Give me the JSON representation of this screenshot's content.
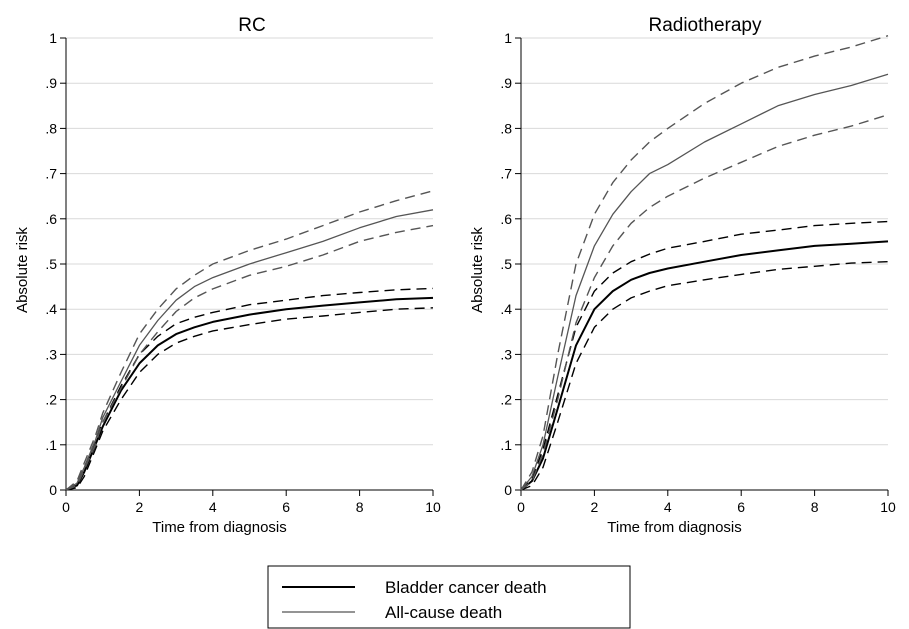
{
  "chart_data": [
    {
      "type": "line",
      "title": "RC",
      "xlabel": "Time from diagnosis",
      "ylabel": "Absolute risk",
      "xlim": [
        0,
        10
      ],
      "ylim": [
        0,
        1
      ],
      "xticks": [
        "0",
        "2",
        "4",
        "6",
        "8",
        "10"
      ],
      "yticks": [
        "0",
        ".1",
        ".2",
        ".3",
        ".4",
        ".5",
        ".6",
        ".7",
        ".8",
        ".9",
        "1"
      ],
      "grid": "horizontal",
      "series": [
        {
          "name": "Bladder cancer death",
          "color": "#000000",
          "style": "solid",
          "points": [
            [
              0,
              0
            ],
            [
              0.3,
              0.01
            ],
            [
              0.5,
              0.04
            ],
            [
              0.8,
              0.1
            ],
            [
              1,
              0.14
            ],
            [
              1.5,
              0.22
            ],
            [
              2,
              0.28
            ],
            [
              2.5,
              0.32
            ],
            [
              3,
              0.345
            ],
            [
              3.5,
              0.36
            ],
            [
              4,
              0.372
            ],
            [
              5,
              0.388
            ],
            [
              6,
              0.4
            ],
            [
              7,
              0.408
            ],
            [
              8,
              0.415
            ],
            [
              9,
              0.422
            ],
            [
              10,
              0.425
            ]
          ]
        },
        {
          "name": "",
          "color": "#000000",
          "style": "dashed",
          "points": [
            [
              0,
              0
            ],
            [
              0.3,
              0.015
            ],
            [
              0.5,
              0.05
            ],
            [
              0.8,
              0.11
            ],
            [
              1,
              0.15
            ],
            [
              1.5,
              0.23
            ],
            [
              2,
              0.3
            ],
            [
              2.5,
              0.34
            ],
            [
              3,
              0.368
            ],
            [
              3.5,
              0.382
            ],
            [
              4,
              0.393
            ],
            [
              5,
              0.41
            ],
            [
              6,
              0.42
            ],
            [
              7,
              0.43
            ],
            [
              8,
              0.437
            ],
            [
              9,
              0.443
            ],
            [
              10,
              0.446
            ]
          ]
        },
        {
          "name": "",
          "color": "#000000",
          "style": "dashed",
          "points": [
            [
              0,
              0
            ],
            [
              0.3,
              0.005
            ],
            [
              0.5,
              0.03
            ],
            [
              0.8,
              0.09
            ],
            [
              1,
              0.13
            ],
            [
              1.5,
              0.2
            ],
            [
              2,
              0.26
            ],
            [
              2.5,
              0.3
            ],
            [
              3,
              0.325
            ],
            [
              3.5,
              0.34
            ],
            [
              4,
              0.352
            ],
            [
              5,
              0.366
            ],
            [
              6,
              0.378
            ],
            [
              7,
              0.385
            ],
            [
              8,
              0.393
            ],
            [
              9,
              0.4
            ],
            [
              10,
              0.403
            ]
          ]
        },
        {
          "name": "All-cause death",
          "color": "#555555",
          "style": "solid",
          "points": [
            [
              0,
              0
            ],
            [
              0.3,
              0.015
            ],
            [
              0.5,
              0.05
            ],
            [
              0.8,
              0.11
            ],
            [
              1,
              0.16
            ],
            [
              1.5,
              0.24
            ],
            [
              2,
              0.32
            ],
            [
              2.5,
              0.375
            ],
            [
              3,
              0.42
            ],
            [
              3.5,
              0.45
            ],
            [
              4,
              0.47
            ],
            [
              5,
              0.5
            ],
            [
              6,
              0.525
            ],
            [
              7,
              0.55
            ],
            [
              8,
              0.58
            ],
            [
              9,
              0.605
            ],
            [
              10,
              0.62
            ]
          ]
        },
        {
          "name": "",
          "color": "#555555",
          "style": "dashed",
          "points": [
            [
              0,
              0
            ],
            [
              0.3,
              0.02
            ],
            [
              0.5,
              0.06
            ],
            [
              0.8,
              0.12
            ],
            [
              1,
              0.17
            ],
            [
              1.5,
              0.26
            ],
            [
              2,
              0.345
            ],
            [
              2.5,
              0.4
            ],
            [
              3,
              0.445
            ],
            [
              3.5,
              0.475
            ],
            [
              4,
              0.5
            ],
            [
              5,
              0.53
            ],
            [
              6,
              0.555
            ],
            [
              7,
              0.585
            ],
            [
              8,
              0.615
            ],
            [
              9,
              0.64
            ],
            [
              10,
              0.662
            ]
          ]
        },
        {
          "name": "",
          "color": "#555555",
          "style": "dashed",
          "points": [
            [
              0,
              0
            ],
            [
              0.3,
              0.01
            ],
            [
              0.5,
              0.045
            ],
            [
              0.8,
              0.1
            ],
            [
              1,
              0.15
            ],
            [
              1.5,
              0.225
            ],
            [
              2,
              0.3
            ],
            [
              2.5,
              0.35
            ],
            [
              3,
              0.395
            ],
            [
              3.5,
              0.425
            ],
            [
              4,
              0.445
            ],
            [
              5,
              0.475
            ],
            [
              6,
              0.495
            ],
            [
              7,
              0.52
            ],
            [
              8,
              0.55
            ],
            [
              9,
              0.57
            ],
            [
              10,
              0.585
            ]
          ]
        }
      ]
    },
    {
      "type": "line",
      "title": "Radiotherapy",
      "xlabel": "Time from diagnosis",
      "ylabel": "Absolute risk",
      "xlim": [
        0,
        10
      ],
      "ylim": [
        0,
        1
      ],
      "xticks": [
        "0",
        "2",
        "4",
        "6",
        "8",
        "10"
      ],
      "yticks": [
        "0",
        ".1",
        ".2",
        ".3",
        ".4",
        ".5",
        ".6",
        ".7",
        ".8",
        ".9",
        "1"
      ],
      "grid": "horizontal",
      "series": [
        {
          "name": "Bladder cancer death",
          "color": "#000000",
          "style": "solid",
          "points": [
            [
              0,
              0
            ],
            [
              0.3,
              0.02
            ],
            [
              0.6,
              0.07
            ],
            [
              1,
              0.18
            ],
            [
              1.5,
              0.32
            ],
            [
              2,
              0.4
            ],
            [
              2.5,
              0.44
            ],
            [
              3,
              0.465
            ],
            [
              3.5,
              0.48
            ],
            [
              4,
              0.49
            ],
            [
              5,
              0.505
            ],
            [
              6,
              0.52
            ],
            [
              7,
              0.53
            ],
            [
              8,
              0.54
            ],
            [
              9,
              0.545
            ],
            [
              10,
              0.55
            ]
          ]
        },
        {
          "name": "",
          "color": "#000000",
          "style": "dashed",
          "points": [
            [
              0,
              0
            ],
            [
              0.3,
              0.025
            ],
            [
              0.6,
              0.09
            ],
            [
              1,
              0.21
            ],
            [
              1.5,
              0.36
            ],
            [
              2,
              0.44
            ],
            [
              2.5,
              0.48
            ],
            [
              3,
              0.505
            ],
            [
              3.5,
              0.522
            ],
            [
              4,
              0.535
            ],
            [
              5,
              0.55
            ],
            [
              6,
              0.566
            ],
            [
              7,
              0.575
            ],
            [
              8,
              0.585
            ],
            [
              9,
              0.59
            ],
            [
              10,
              0.594
            ]
          ]
        },
        {
          "name": "",
          "color": "#000000",
          "style": "dashed",
          "points": [
            [
              0,
              0
            ],
            [
              0.3,
              0.01
            ],
            [
              0.6,
              0.05
            ],
            [
              1,
              0.15
            ],
            [
              1.5,
              0.28
            ],
            [
              2,
              0.36
            ],
            [
              2.5,
              0.4
            ],
            [
              3,
              0.425
            ],
            [
              3.5,
              0.44
            ],
            [
              4,
              0.452
            ],
            [
              5,
              0.465
            ],
            [
              6,
              0.477
            ],
            [
              7,
              0.488
            ],
            [
              8,
              0.495
            ],
            [
              9,
              0.502
            ],
            [
              10,
              0.505
            ]
          ]
        },
        {
          "name": "All-cause death",
          "color": "#555555",
          "style": "solid",
          "points": [
            [
              0,
              0
            ],
            [
              0.3,
              0.03
            ],
            [
              0.6,
              0.1
            ],
            [
              1,
              0.25
            ],
            [
              1.5,
              0.43
            ],
            [
              2,
              0.54
            ],
            [
              2.5,
              0.61
            ],
            [
              3,
              0.66
            ],
            [
              3.5,
              0.7
            ],
            [
              4,
              0.72
            ],
            [
              5,
              0.77
            ],
            [
              6,
              0.81
            ],
            [
              7,
              0.85
            ],
            [
              8,
              0.875
            ],
            [
              9,
              0.895
            ],
            [
              10,
              0.92
            ]
          ]
        },
        {
          "name": "",
          "color": "#555555",
          "style": "dashed",
          "points": [
            [
              0,
              0
            ],
            [
              0.3,
              0.04
            ],
            [
              0.6,
              0.12
            ],
            [
              1,
              0.3
            ],
            [
              1.5,
              0.5
            ],
            [
              2,
              0.61
            ],
            [
              2.5,
              0.68
            ],
            [
              3,
              0.73
            ],
            [
              3.5,
              0.77
            ],
            [
              4,
              0.8
            ],
            [
              5,
              0.855
            ],
            [
              6,
              0.9
            ],
            [
              7,
              0.935
            ],
            [
              8,
              0.96
            ],
            [
              9,
              0.98
            ],
            [
              10,
              1.005
            ]
          ]
        },
        {
          "name": "",
          "color": "#555555",
          "style": "dashed",
          "points": [
            [
              0,
              0
            ],
            [
              0.3,
              0.02
            ],
            [
              0.6,
              0.08
            ],
            [
              1,
              0.2
            ],
            [
              1.5,
              0.37
            ],
            [
              2,
              0.47
            ],
            [
              2.5,
              0.54
            ],
            [
              3,
              0.59
            ],
            [
              3.5,
              0.625
            ],
            [
              4,
              0.65
            ],
            [
              5,
              0.69
            ],
            [
              6,
              0.725
            ],
            [
              7,
              0.76
            ],
            [
              8,
              0.785
            ],
            [
              9,
              0.805
            ],
            [
              10,
              0.83
            ]
          ]
        }
      ]
    }
  ],
  "legend": {
    "position": "bottom-center",
    "items": [
      {
        "label": "Bladder cancer death",
        "color": "#000000",
        "width": 2
      },
      {
        "label": "All-cause death",
        "color": "#555555",
        "width": 1.2
      }
    ]
  }
}
